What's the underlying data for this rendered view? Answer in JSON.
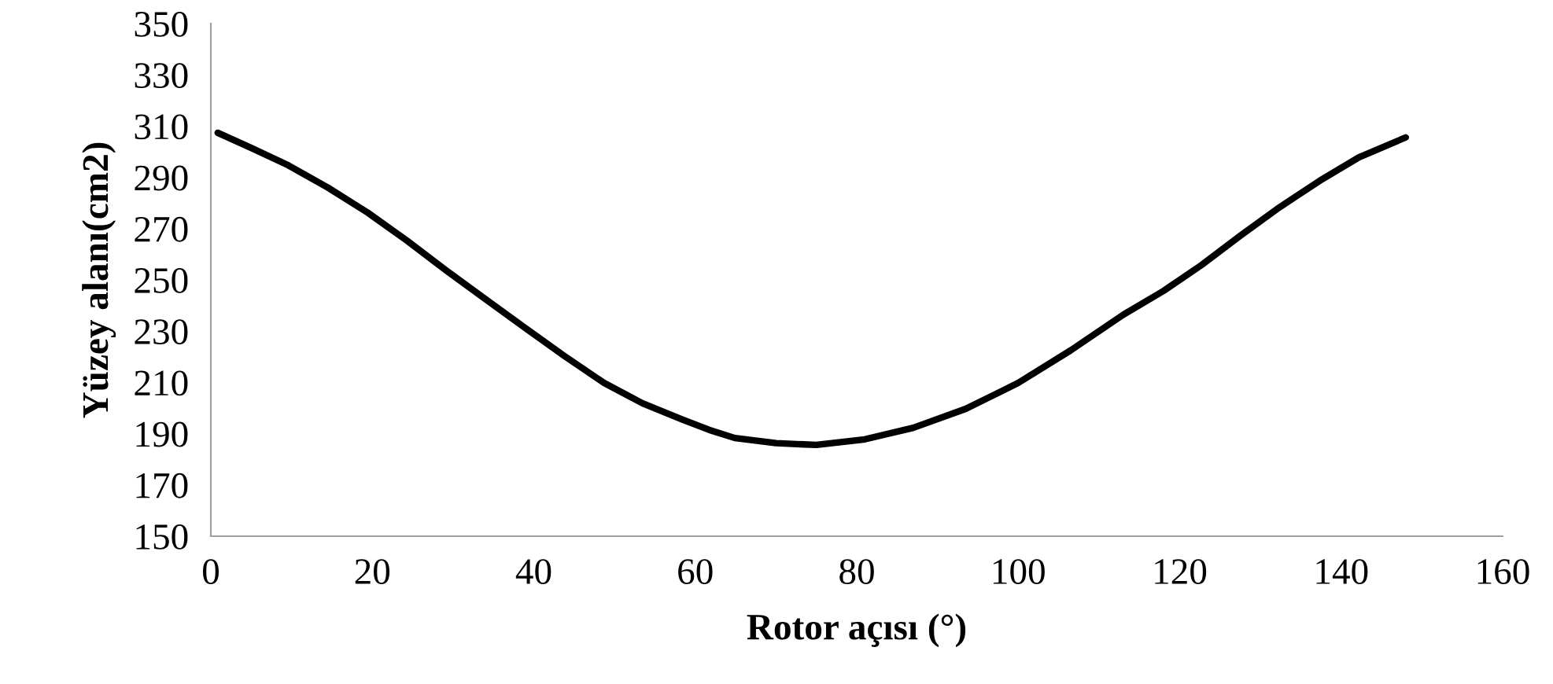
{
  "chart_data": {
    "type": "line",
    "xlabel": "Rotor açısı (°)",
    "ylabel": "Yüzey alanı(cm2)",
    "x": [
      0.85,
      5,
      9.6,
      14.5,
      19.4,
      24.3,
      29.1,
      34,
      38.9,
      43.8,
      48.7,
      53.5,
      58.4,
      61.7,
      64.9,
      70,
      75,
      81,
      87,
      93.5,
      100,
      106.5,
      113,
      118,
      122.7,
      127.5,
      132.4,
      137.3,
      142.2,
      148
    ],
    "series": [
      {
        "color": "#000000",
        "values": [
          307.4,
          301.5,
          294.7,
          286,
          276.3,
          265.3,
          253.8,
          242.5,
          231.3,
          220.3,
          209.8,
          201.8,
          195.5,
          191.5,
          188.3,
          186.3,
          185.6,
          187.8,
          192.3,
          199.7,
          209.8,
          222.5,
          236.4,
          245.7,
          255.8,
          267.2,
          278.4,
          288.6,
          297.8,
          305.6
        ]
      }
    ],
    "xlim": [
      0,
      160
    ],
    "xticks": [
      0,
      20,
      40,
      60,
      80,
      100,
      120,
      140,
      160
    ],
    "ylim": [
      150,
      350
    ],
    "yticks": [
      150,
      170,
      190,
      210,
      230,
      250,
      270,
      290,
      310,
      330,
      350
    ],
    "grid": false,
    "legend": false,
    "marker": "none",
    "line_style": "solid"
  }
}
